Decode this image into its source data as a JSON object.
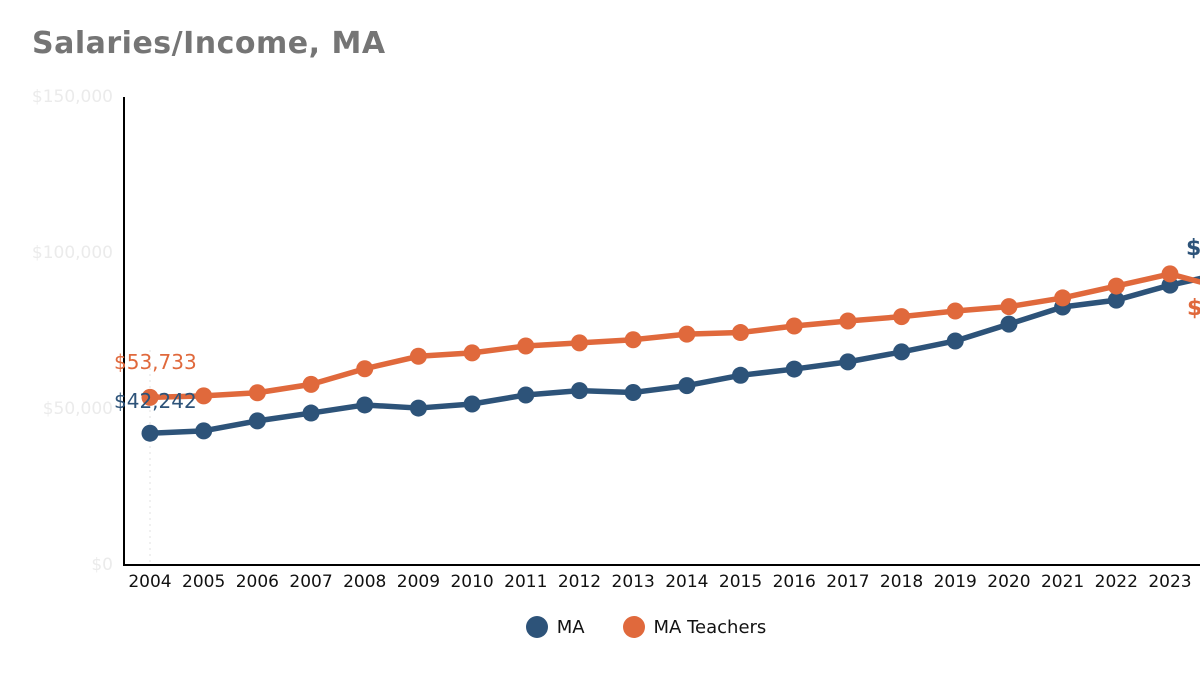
{
  "title": "Salaries/Income, MA",
  "colors": {
    "ma": "#2d5379",
    "ma_teachers": "#e0693c",
    "title_text": "#757575",
    "axis": "#000000",
    "y_tick_text": "#ebebeb",
    "x_tick_text": "#111111",
    "guide_line": "#ececec",
    "background": "#ffffff"
  },
  "chart_data": {
    "type": "line",
    "title": "Salaries/Income, MA",
    "categories": [
      "2004",
      "2005",
      "2006",
      "2007",
      "2008",
      "2009",
      "2010",
      "2011",
      "2012",
      "2013",
      "2014",
      "2015",
      "2016",
      "2017",
      "2018",
      "2019",
      "2020",
      "2021",
      "2022",
      "2023"
    ],
    "series": [
      {
        "name": "MA",
        "color": "#2d5379",
        "values": [
          42242,
          43000,
          46200,
          48700,
          51300,
          50300,
          51600,
          54500,
          55900,
          55300,
          57500,
          60800,
          62800,
          65100,
          68300,
          71800,
          77200,
          82700,
          84900,
          89700
        ],
        "first_point_label": "$42,242",
        "end_label_visible_text": "$"
      },
      {
        "name": "MA Teachers",
        "color": "#e0693c",
        "values": [
          53733,
          54200,
          55200,
          57900,
          62900,
          66900,
          68000,
          70200,
          71200,
          72200,
          74000,
          74500,
          76600,
          78200,
          79600,
          81400,
          82800,
          85600,
          89400,
          93300
        ],
        "first_point_label": "$53,733",
        "end_label_visible_text": "$"
      }
    ],
    "offscreen_next_point_estimate": {
      "MA": 93500,
      "MA Teachers": 88700
    },
    "y_ticks": [
      {
        "label": "$0",
        "value": 0
      },
      {
        "label": "$50,000",
        "value": 50000
      },
      {
        "label": "$100,000",
        "value": 100000
      },
      {
        "label": "$150,000",
        "value": 150000
      }
    ],
    "ylim": [
      0,
      150000
    ],
    "grid": "off",
    "legend_position": "bottom-center"
  },
  "legend": {
    "items": [
      {
        "label": "MA"
      },
      {
        "label": "MA Teachers"
      }
    ]
  }
}
